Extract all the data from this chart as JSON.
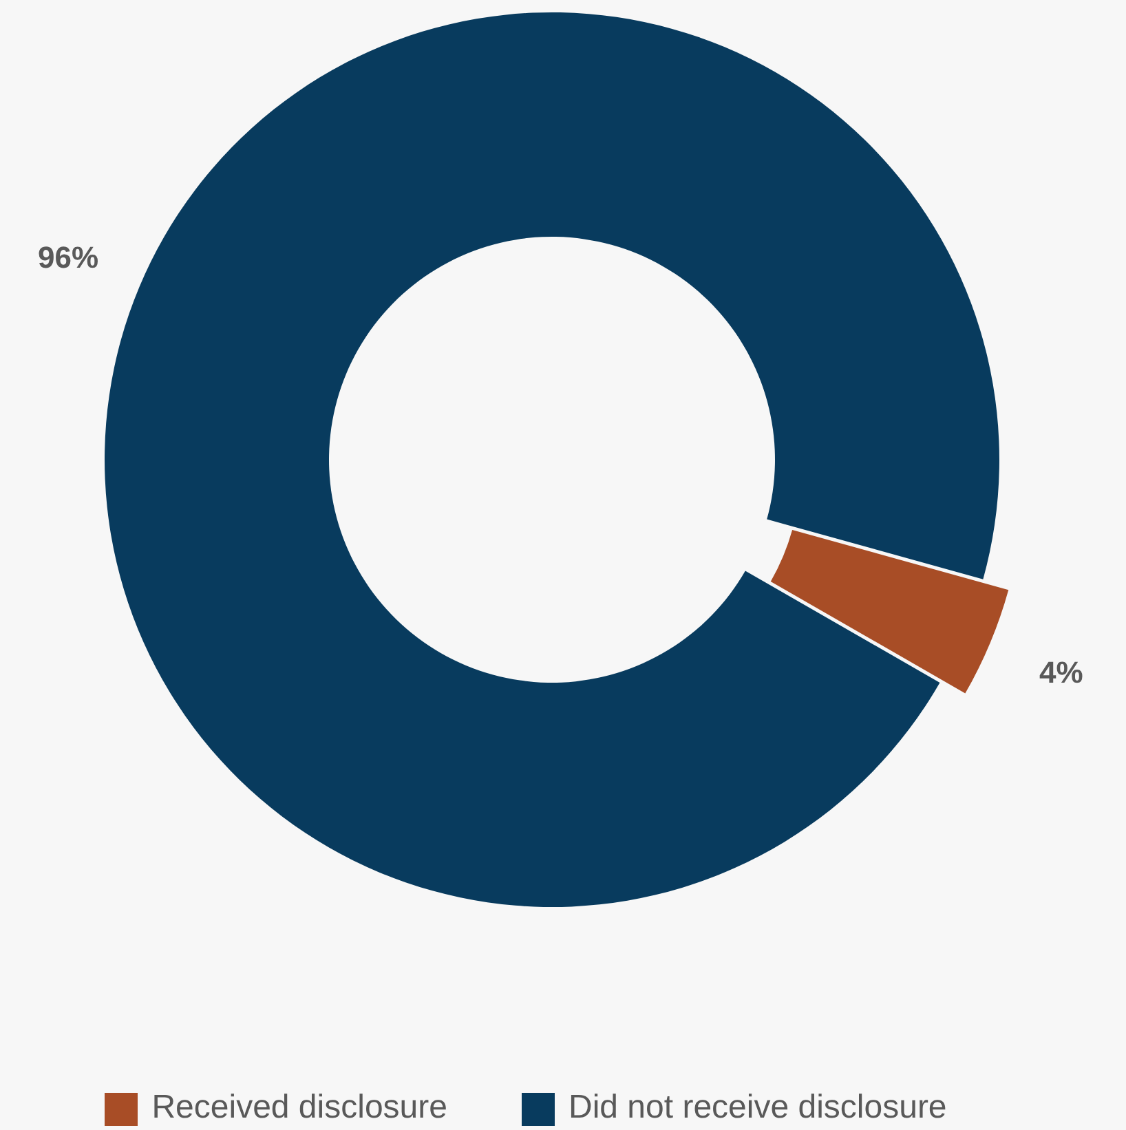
{
  "chart_data": {
    "type": "donut",
    "categories": [
      "Received disclosure",
      "Did not receive disclosure"
    ],
    "values": [
      4,
      96
    ],
    "colors": [
      "#a84d26",
      "#083b5e"
    ],
    "value_labels": [
      "4%",
      "96%"
    ],
    "legend": "bottom"
  }
}
